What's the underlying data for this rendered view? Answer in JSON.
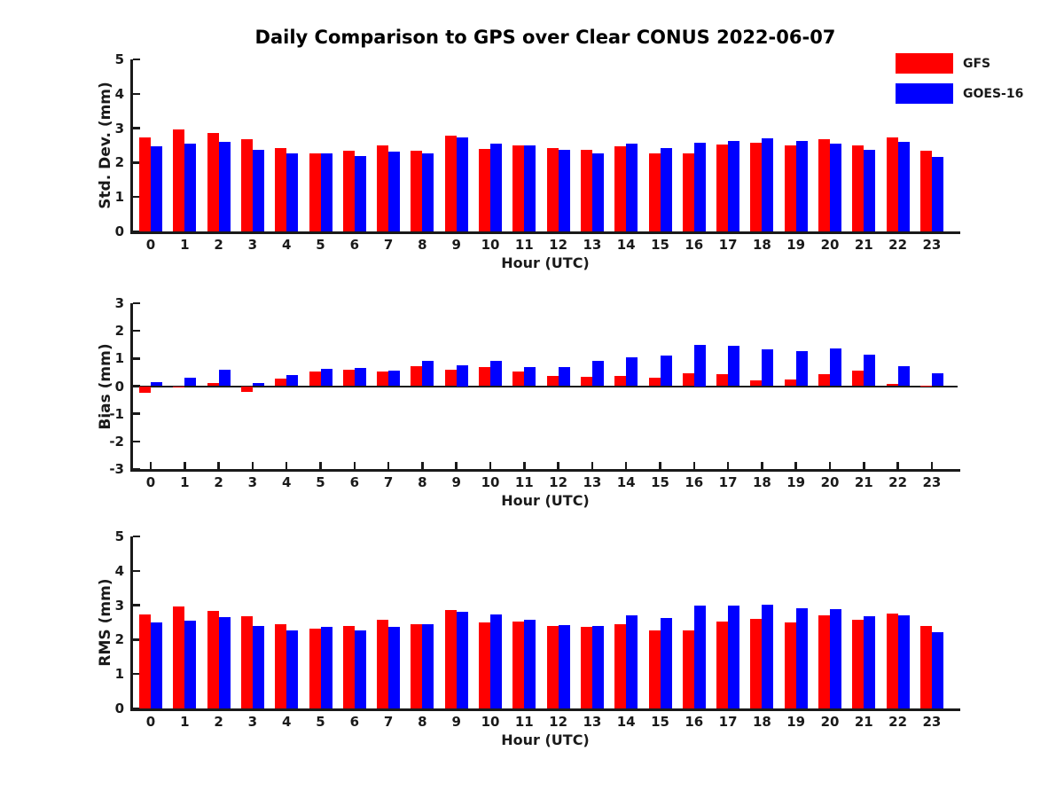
{
  "title": "Daily Comparison to GPS over Clear CONUS 2022-06-07",
  "legend": [
    {
      "label": "GFS",
      "color": "#ff0000"
    },
    {
      "label": "GOES-16",
      "color": "#0000ff"
    }
  ],
  "colors": {
    "gfs_red": "#ff0000",
    "goes_blue": "#0000ff",
    "axis": "#1a1a1a"
  },
  "chart_data": [
    {
      "type": "bar",
      "id": "std-dev",
      "ylabel": "Std. Dev. (mm)",
      "xlabel": "Hour (UTC)",
      "ylim": [
        0,
        5
      ],
      "yticks": [
        0,
        1,
        2,
        3,
        4,
        5
      ],
      "grid": false,
      "legend_position": "top-right-of-figure",
      "categories": [
        "0",
        "1",
        "2",
        "3",
        "4",
        "5",
        "6",
        "7",
        "8",
        "9",
        "10",
        "11",
        "12",
        "13",
        "14",
        "15",
        "16",
        "17",
        "18",
        "19",
        "20",
        "21",
        "22",
        "23"
      ],
      "series": [
        {
          "name": "GFS",
          "color": "#ff0000",
          "values": [
            2.72,
            2.97,
            2.85,
            2.67,
            2.42,
            2.26,
            2.34,
            2.5,
            2.34,
            2.78,
            2.4,
            2.51,
            2.43,
            2.36,
            2.47,
            2.28,
            2.26,
            2.52,
            2.58,
            2.5,
            2.67,
            2.51,
            2.72,
            2.35
          ]
        },
        {
          "name": "GOES-16",
          "color": "#0000ff",
          "values": [
            2.48,
            2.55,
            2.6,
            2.38,
            2.27,
            2.28,
            2.18,
            2.32,
            2.27,
            2.73,
            2.56,
            2.51,
            2.37,
            2.28,
            2.56,
            2.42,
            2.57,
            2.64,
            2.7,
            2.62,
            2.55,
            2.38,
            2.61,
            2.17
          ]
        }
      ]
    },
    {
      "type": "bar",
      "id": "bias",
      "ylabel": "Bias (mm)",
      "xlabel": "Hour (UTC)",
      "ylim": [
        -3,
        3
      ],
      "yticks": [
        -3,
        -2,
        -1,
        0,
        1,
        2,
        3
      ],
      "grid": false,
      "categories": [
        "0",
        "1",
        "2",
        "3",
        "4",
        "5",
        "6",
        "7",
        "8",
        "9",
        "10",
        "11",
        "12",
        "13",
        "14",
        "15",
        "16",
        "17",
        "18",
        "19",
        "20",
        "21",
        "22",
        "23"
      ],
      "series": [
        {
          "name": "GFS",
          "color": "#ff0000",
          "values": [
            -0.25,
            -0.05,
            0.1,
            -0.22,
            0.28,
            0.52,
            0.6,
            0.52,
            0.72,
            0.58,
            0.7,
            0.52,
            0.38,
            0.35,
            0.37,
            0.32,
            0.48,
            0.42,
            0.2,
            0.25,
            0.44,
            0.55,
            0.08,
            0.02
          ]
        },
        {
          "name": "GOES-16",
          "color": "#0000ff",
          "values": [
            0.15,
            0.3,
            0.58,
            0.1,
            0.4,
            0.62,
            0.65,
            0.55,
            0.92,
            0.75,
            0.9,
            0.7,
            0.68,
            0.9,
            1.05,
            1.1,
            1.5,
            1.45,
            1.32,
            1.28,
            1.35,
            1.15,
            0.72,
            0.45
          ]
        }
      ]
    },
    {
      "type": "bar",
      "id": "rms",
      "ylabel": "RMS (mm)",
      "xlabel": "Hour (UTC)",
      "ylim": [
        0,
        5
      ],
      "yticks": [
        0,
        1,
        2,
        3,
        4,
        5
      ],
      "grid": false,
      "categories": [
        "0",
        "1",
        "2",
        "3",
        "4",
        "5",
        "6",
        "7",
        "8",
        "9",
        "10",
        "11",
        "12",
        "13",
        "14",
        "15",
        "16",
        "17",
        "18",
        "19",
        "20",
        "21",
        "22",
        "23"
      ],
      "series": [
        {
          "name": "GFS",
          "color": "#ff0000",
          "values": [
            2.72,
            2.96,
            2.84,
            2.68,
            2.45,
            2.33,
            2.4,
            2.59,
            2.46,
            2.85,
            2.49,
            2.53,
            2.4,
            2.37,
            2.46,
            2.26,
            2.26,
            2.52,
            2.61,
            2.5,
            2.71,
            2.58,
            2.76,
            2.39
          ]
        },
        {
          "name": "GOES-16",
          "color": "#0000ff",
          "values": [
            2.49,
            2.55,
            2.66,
            2.4,
            2.27,
            2.36,
            2.28,
            2.38,
            2.44,
            2.81,
            2.72,
            2.57,
            2.42,
            2.39,
            2.7,
            2.63,
            2.98,
            2.99,
            3.02,
            2.92,
            2.89,
            2.68,
            2.7,
            2.21
          ]
        }
      ]
    }
  ]
}
